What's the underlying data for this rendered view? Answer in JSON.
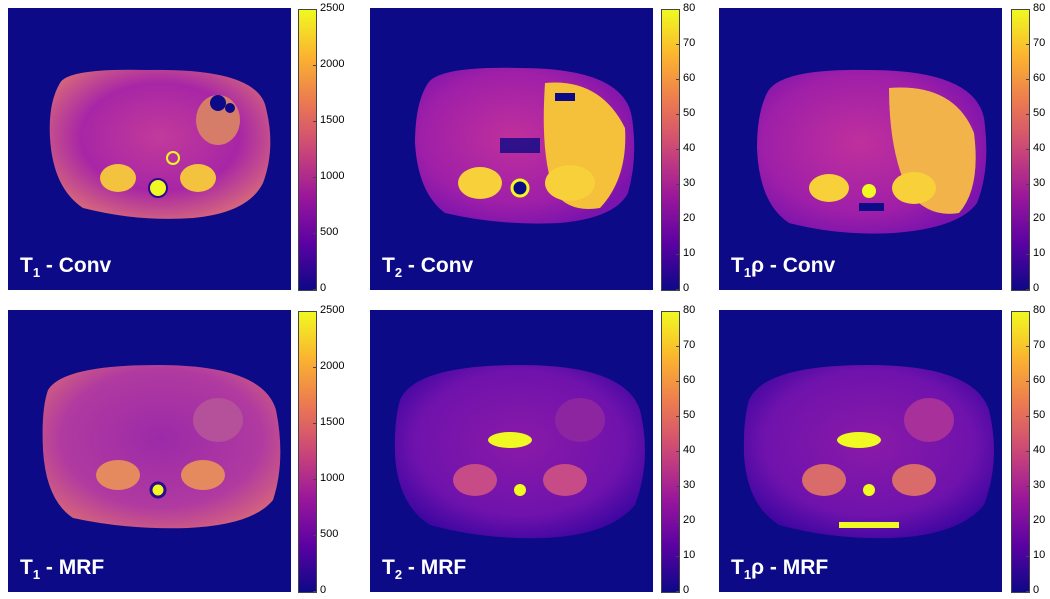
{
  "colors": {
    "background": "#0c0a86",
    "colormap": [
      "#0d0887",
      "#5b02a3",
      "#9a179b",
      "#cb4678",
      "#eb7852",
      "#fbb32f",
      "#f0f921"
    ]
  },
  "panels": [
    {
      "id": "t1-conv",
      "label_main": "T",
      "label_sub": "1",
      "label_rest": " - Conv",
      "colorbar": {
        "ticks": [
          "2500",
          "2000",
          "1500",
          "1000",
          "500",
          "0"
        ]
      }
    },
    {
      "id": "t2-conv",
      "label_main": "T",
      "label_sub": "2",
      "label_rest": " - Conv",
      "colorbar": {
        "ticks": [
          "80",
          "70",
          "60",
          "50",
          "40",
          "30",
          "20",
          "10",
          "0"
        ]
      }
    },
    {
      "id": "t1rho-conv",
      "label_main": "T",
      "label_sub": "1",
      "label_rest": "ρ - Conv",
      "colorbar": {
        "ticks": [
          "80",
          "70",
          "60",
          "50",
          "40",
          "30",
          "20",
          "10",
          "0"
        ]
      }
    },
    {
      "id": "t1-mrf",
      "label_main": "T",
      "label_sub": "1",
      "label_rest": " - MRF",
      "colorbar": {
        "ticks": [
          "2500",
          "2000",
          "1500",
          "1000",
          "500",
          "0"
        ]
      }
    },
    {
      "id": "t2-mrf",
      "label_main": "T",
      "label_sub": "2",
      "label_rest": " - MRF",
      "colorbar": {
        "ticks": [
          "80",
          "70",
          "60",
          "50",
          "40",
          "30",
          "20",
          "10",
          "0"
        ]
      }
    },
    {
      "id": "t1rho-mrf",
      "label_main": "T",
      "label_sub": "1",
      "label_rest": "ρ - MRF",
      "colorbar": {
        "ticks": [
          "80",
          "70",
          "60",
          "50",
          "40",
          "30",
          "20",
          "10",
          "0"
        ]
      }
    }
  ]
}
